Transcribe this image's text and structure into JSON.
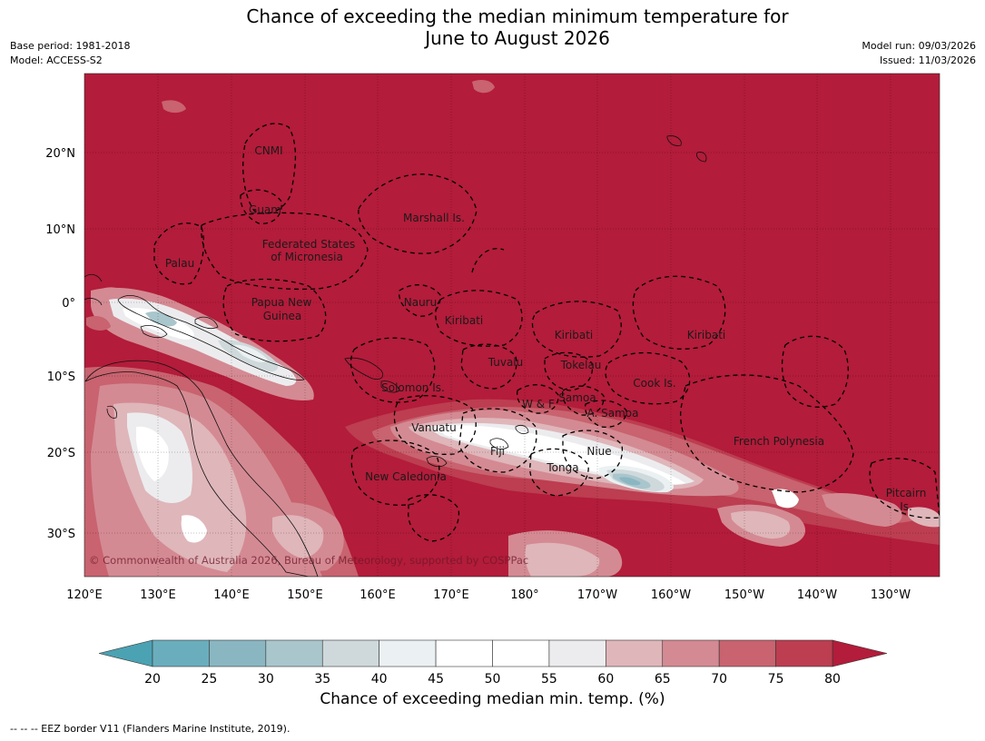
{
  "title": {
    "line1": "Chance of exceeding the median minimum temperature for",
    "line2": "June to August 2026"
  },
  "meta": {
    "base_period": "Base period: 1981-2018",
    "model": "Model: ACCESS-S2",
    "model_run": "Model run: 09/03/2026",
    "issued": "Issued: 11/03/2026"
  },
  "copyright": "© Commonwealth of Australia 2026, Bureau of Meteorology, supported by COSPPac",
  "axes": {
    "lon_ticks": [
      "120°E",
      "130°E",
      "140°E",
      "150°E",
      "160°E",
      "170°E",
      "180°",
      "170°W",
      "160°W",
      "150°W",
      "140°W",
      "130°W"
    ],
    "lat_ticks": [
      "20°N",
      "10°N",
      "0°",
      "10°S",
      "20°S",
      "30°S"
    ]
  },
  "regions": [
    {
      "name": "CNMI"
    },
    {
      "name": "Guam"
    },
    {
      "name": "Marshall Is."
    },
    {
      "name": "Federated States"
    },
    {
      "name": "of Micronesia"
    },
    {
      "name": "Palau"
    },
    {
      "name": "Papua New"
    },
    {
      "name": "Guinea"
    },
    {
      "name": "Nauru"
    },
    {
      "name": "Kiribati"
    },
    {
      "name": "Kiribati"
    },
    {
      "name": "Kiribati"
    },
    {
      "name": "Tuvalu"
    },
    {
      "name": "Tokelau"
    },
    {
      "name": "Solomon Is."
    },
    {
      "name": "Cook Is."
    },
    {
      "name": "Samoa"
    },
    {
      "name": "W & F"
    },
    {
      "name": "A. Samoa"
    },
    {
      "name": "Vanuatu"
    },
    {
      "name": "Fiji"
    },
    {
      "name": "Niue"
    },
    {
      "name": "Tonga"
    },
    {
      "name": "French Polynesia"
    },
    {
      "name": "New Caledonia"
    },
    {
      "name": "Pitcairn"
    },
    {
      "name": "Is."
    }
  ],
  "colorbar": {
    "ticks": [
      "20",
      "25",
      "30",
      "35",
      "40",
      "45",
      "50",
      "55",
      "60",
      "65",
      "70",
      "75",
      "80"
    ],
    "colors": [
      "#6aaebd",
      "#8ab6c2",
      "#a9c6cc",
      "#cfd9dc",
      "#ebf1f2",
      "#ffffff",
      "#ffffff",
      "#ececee",
      "#dfb6ba",
      "#d48a93",
      "#c8636f",
      "#bc3e50"
    ],
    "under_color": "#4ba2b3",
    "over_color": "#b31c3a",
    "label": "Chance of exceeding median min. temp. (%)"
  },
  "palette": {
    "base": "#b31c3a",
    "c75": "#bc3e50",
    "c70": "#c8636f",
    "c65": "#d48a93",
    "c60": "#dfb6ba",
    "c55": "#ececee",
    "c50": "#ffffff",
    "c40": "#ebf1f2",
    "c35": "#cfd9dc",
    "c30": "#a9c6cc",
    "c25": "#8ab6c2"
  },
  "footer": "--  --  -- EEZ border V11 (Flanders Marine Institute, 2019)."
}
